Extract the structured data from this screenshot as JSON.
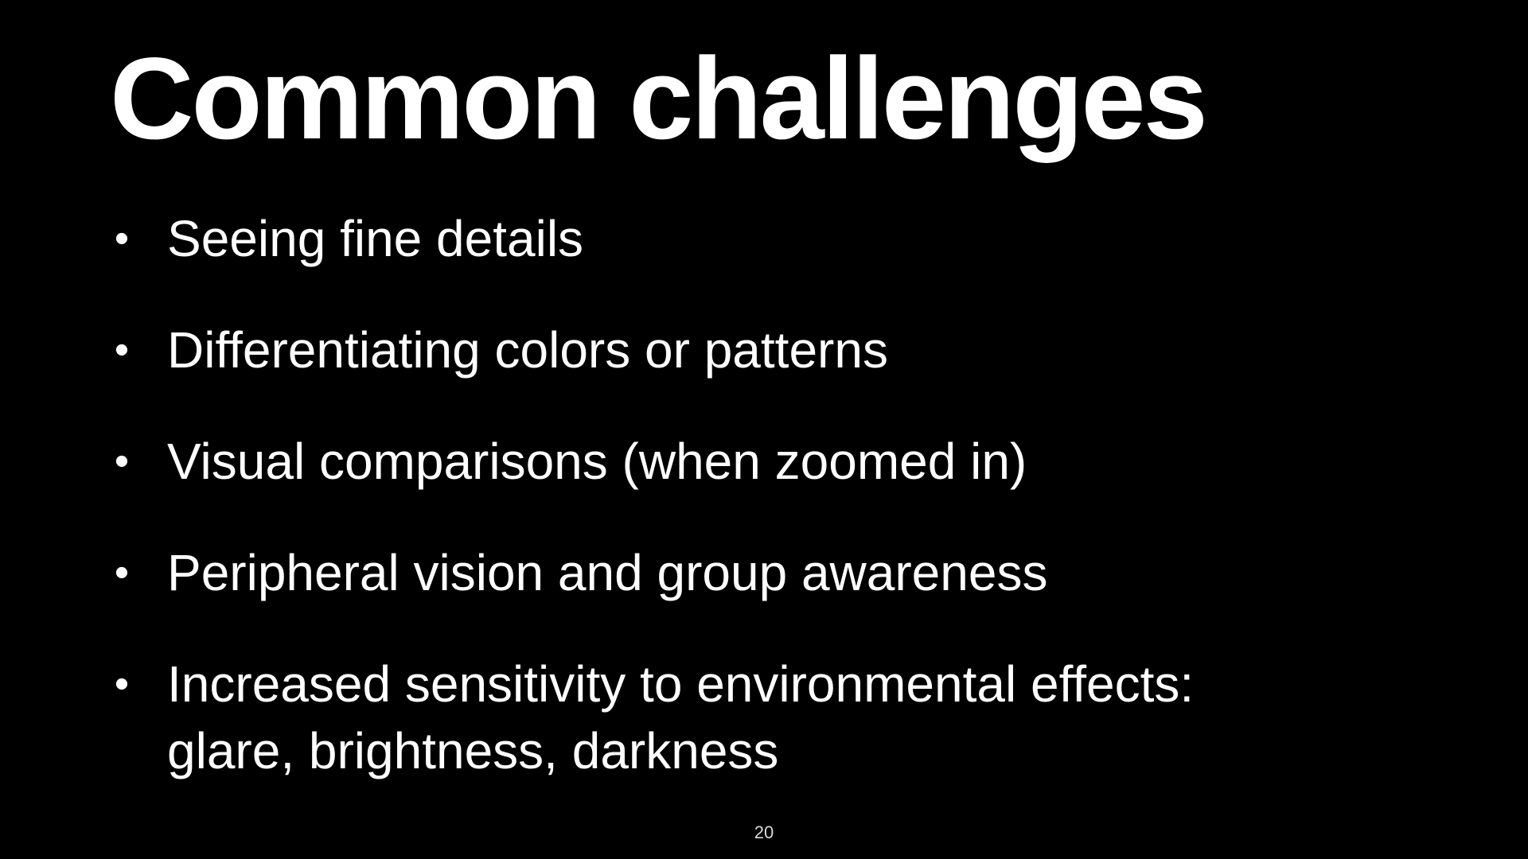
{
  "slide": {
    "title": "Common challenges",
    "bullet_symbol": "•",
    "bullets": [
      {
        "line1": "Seeing fine details",
        "line2": ""
      },
      {
        "line1": "Differentiating colors or patterns",
        "line2": ""
      },
      {
        "line1": "Visual comparisons (when zoomed in)",
        "line2": ""
      },
      {
        "line1": "Peripheral vision and group awareness",
        "line2": ""
      },
      {
        "line1": "Increased sensitivity to environmental effects:",
        "line2": "glare, brightness, darkness"
      }
    ],
    "page_number": "20"
  },
  "colors": {
    "background": "#000000",
    "text": "#ffffff",
    "page_number": "#d8d8d8"
  }
}
